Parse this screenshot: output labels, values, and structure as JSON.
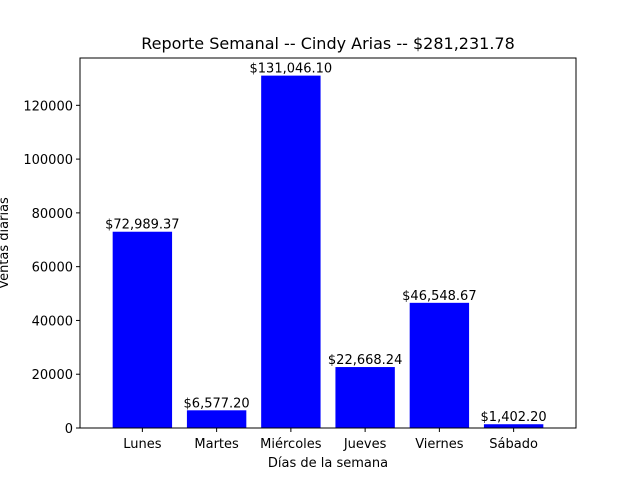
{
  "chart_data": {
    "type": "bar",
    "title": "Reporte Semanal -- Cindy Arias -- $281,231.78",
    "xlabel": "Días de la semana",
    "ylabel": "Ventas diarias",
    "categories": [
      "Lunes",
      "Martes",
      "Miércoles",
      "Jueves",
      "Viernes",
      "Sábado"
    ],
    "values": [
      72989.37,
      6577.2,
      131046.1,
      22668.24,
      46548.67,
      1402.2
    ],
    "data_labels": [
      "$72,989.37",
      "$6,577.20",
      "$131,046.10",
      "$22,668.24",
      "$46,548.67",
      "$1,402.20"
    ],
    "yticks": [
      0,
      20000,
      40000,
      60000,
      80000,
      100000,
      120000
    ],
    "ylim": [
      0,
      137598.4
    ],
    "grid": false,
    "bar_color": "#0000ff"
  }
}
